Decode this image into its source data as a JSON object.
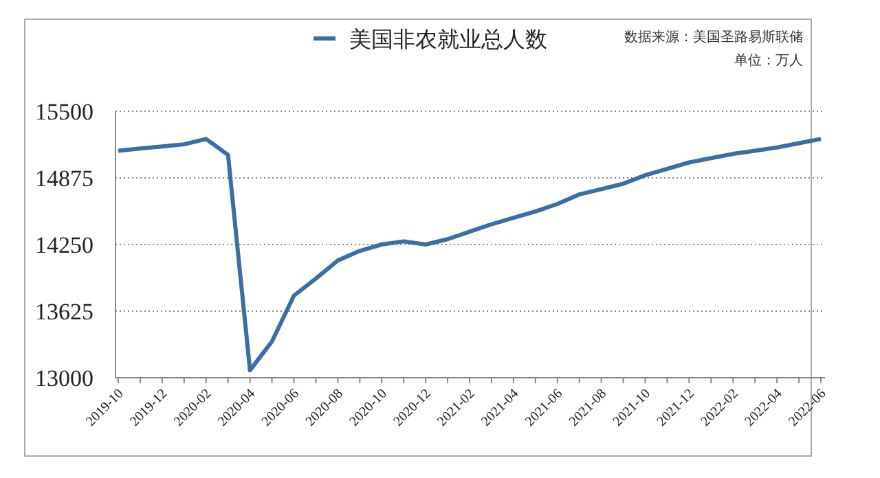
{
  "chart_data": {
    "type": "line",
    "title": null,
    "categories": [
      "2019-10",
      null,
      "2019-12",
      null,
      "2020-02",
      null,
      "2020-04",
      null,
      "2020-06",
      null,
      "2020-08",
      null,
      "2020-10",
      null,
      "2020-12",
      null,
      "2021-02",
      null,
      "2021-04",
      null,
      "2021-06",
      null,
      "2021-08",
      null,
      "2021-10",
      null,
      "2021-12",
      null,
      "2022-02",
      null,
      "2022-04",
      null,
      "2022-06"
    ],
    "series": [
      {
        "name": "美国非农就业总人数",
        "color": "#3a6ea5",
        "values": [
          15130,
          15150,
          15170,
          15190,
          15240,
          15090,
          13070,
          13340,
          13770,
          13930,
          14100,
          14190,
          14250,
          14280,
          14250,
          14300,
          14370,
          14440,
          14500,
          14560,
          14630,
          14720,
          14770,
          14820,
          14900,
          14960,
          15020,
          15060,
          15100,
          15130,
          15160,
          15200,
          15240
        ]
      }
    ],
    "ylim": [
      13000,
      15500
    ],
    "yticks": [
      13000,
      13625,
      14250,
      14875,
      15500
    ],
    "grid": "y",
    "legend": "top",
    "marker": "none",
    "line_style": "solid",
    "annotations": [
      "数据来源：美国圣路易斯联储",
      "单位：万人"
    ]
  }
}
